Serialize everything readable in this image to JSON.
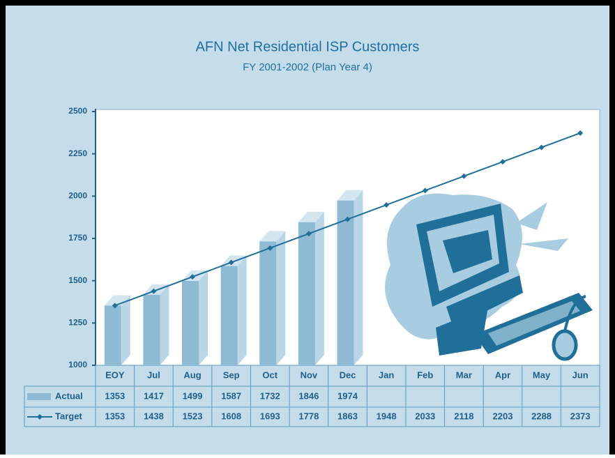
{
  "chart_data": {
    "type": "bar",
    "title": "AFN Net Residential ISP Customers",
    "subtitle": "FY 2001-2002 (Plan Year 4)",
    "categories": [
      "EOY",
      "Jul",
      "Aug",
      "Sep",
      "Oct",
      "Nov",
      "Dec",
      "Jan",
      "Feb",
      "Mar",
      "Apr",
      "May",
      "Jun"
    ],
    "series": [
      {
        "name": "Actual",
        "type": "bar",
        "color": "#8fbad3",
        "values": [
          1353,
          1417,
          1499,
          1587,
          1732,
          1846,
          1974,
          null,
          null,
          null,
          null,
          null,
          null
        ]
      },
      {
        "name": "Target",
        "type": "line",
        "color": "#1f6f99",
        "values": [
          1353,
          1438,
          1523,
          1608,
          1693,
          1778,
          1863,
          1948,
          2033,
          2118,
          2203,
          2288,
          2373
        ]
      }
    ],
    "ylim": [
      1000,
      2500
    ],
    "yticks": [
      1000,
      1250,
      1500,
      1750,
      2000,
      2250,
      2500
    ]
  }
}
